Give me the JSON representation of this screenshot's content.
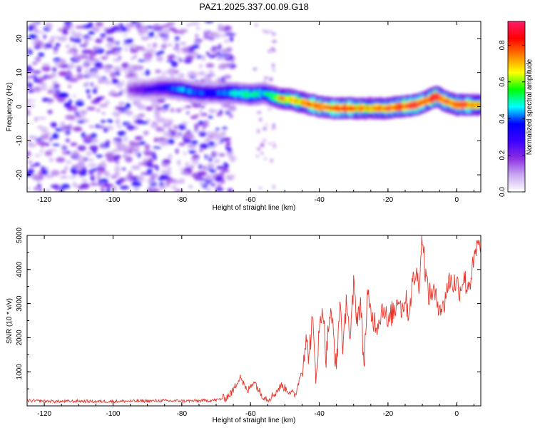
{
  "title": "PAZ1.2025.337.00.09.G18",
  "chart_data": [
    {
      "type": "heatmap",
      "name": "spectrogram",
      "xlabel": "Height of straight line (km)",
      "ylabel": "Frequency (Hz)",
      "xlim": [
        -125,
        7
      ],
      "ylim": [
        -25,
        25
      ],
      "xticks": [
        -120,
        -100,
        -80,
        -60,
        -40,
        -20,
        0
      ],
      "yticks": [
        -20,
        -10,
        0,
        10,
        20
      ],
      "ridge": {
        "x": [
          -95,
          -90,
          -85,
          -80,
          -75,
          -70,
          -65,
          -60,
          -56,
          -52,
          -48,
          -44,
          -40,
          -36,
          -32,
          -28,
          -24,
          -20,
          -16,
          -12,
          -8,
          -6,
          -3,
          0,
          3,
          7
        ],
        "y": [
          5,
          5,
          5.5,
          5,
          4,
          4,
          4,
          3.5,
          4,
          2.5,
          2,
          1,
          0,
          -0.5,
          -0.5,
          -0.5,
          -0.5,
          -0.5,
          0,
          0.5,
          2,
          3,
          1.5,
          0.5,
          0.5,
          0.5
        ],
        "amp": [
          0.2,
          0.28,
          0.35,
          0.45,
          0.4,
          0.4,
          0.5,
          0.55,
          0.5,
          0.7,
          0.75,
          0.8,
          0.85,
          0.8,
          0.85,
          0.8,
          0.78,
          0.82,
          0.88,
          0.9,
          0.85,
          0.93,
          0.8,
          0.85,
          0.8,
          0.78
        ]
      },
      "colorbar": {
        "label": "Normalized spectral amplitude",
        "ticks": [
          0.0,
          0.2,
          0.4,
          0.6,
          0.8
        ],
        "tick_labels": [
          "0.0",
          "0.2",
          "0.4",
          "0.6",
          "0.8"
        ],
        "range": [
          0,
          0.93
        ],
        "colors": [
          "#ffffff",
          "#c9a8f2",
          "#8a2be2",
          "#3a00ff",
          "#0000ff",
          "#00ffff",
          "#00ff00",
          "#ffff00",
          "#ff8000",
          "#ff0000",
          "#ff1a6a"
        ]
      }
    },
    {
      "type": "line",
      "name": "snr",
      "xlabel": "Height of straight line (km)",
      "ylabel": "SNR (10 * v/v)",
      "xlim": [
        -125,
        7
      ],
      "ylim": [
        0,
        5000
      ],
      "xticks": [
        -120,
        -100,
        -80,
        -60,
        -40,
        -20,
        0
      ],
      "yticks": [
        1000,
        2000,
        3000,
        4000,
        5000
      ],
      "color": "#e8352b",
      "series": [
        {
          "name": "SNR",
          "x": [
            -125,
            -120,
            -115,
            -110,
            -105,
            -100,
            -95,
            -90,
            -85,
            -80,
            -75,
            -70,
            -67,
            -65,
            -63,
            -61,
            -59,
            -57,
            -55,
            -53,
            -51,
            -49,
            -47,
            -45,
            -44,
            -43,
            -42,
            -41,
            -40,
            -39,
            -38,
            -37,
            -36,
            -35,
            -34,
            -33,
            -32,
            -31,
            -30,
            -29,
            -28,
            -27,
            -26,
            -25,
            -24,
            -23,
            -22,
            -21,
            -20,
            -19,
            -18,
            -17,
            -16,
            -15,
            -14,
            -13,
            -12,
            -11,
            -10,
            -9,
            -8,
            -7,
            -6,
            -5,
            -4,
            -3,
            -2,
            -1,
            0,
            1,
            2,
            3,
            4,
            5,
            6,
            7
          ],
          "values": [
            150,
            140,
            130,
            140,
            130,
            135,
            140,
            145,
            150,
            145,
            150,
            170,
            250,
            450,
            900,
            400,
            750,
            350,
            200,
            350,
            600,
            450,
            300,
            1100,
            1900,
            1500,
            2500,
            900,
            2100,
            3000,
            1400,
            2700,
            2300,
            1000,
            3100,
            1600,
            3300,
            1800,
            3500,
            2600,
            3000,
            1200,
            3200,
            2700,
            2500,
            2400,
            2800,
            2900,
            2300,
            2700,
            2800,
            3300,
            2800,
            3200,
            2700,
            3500,
            3900,
            3600,
            5000,
            3800,
            3200,
            3400,
            3100,
            3000,
            2800,
            3400,
            3700,
            3600,
            3600,
            3400,
            3800,
            3500,
            3700,
            4200,
            4700,
            4500
          ]
        }
      ]
    }
  ]
}
